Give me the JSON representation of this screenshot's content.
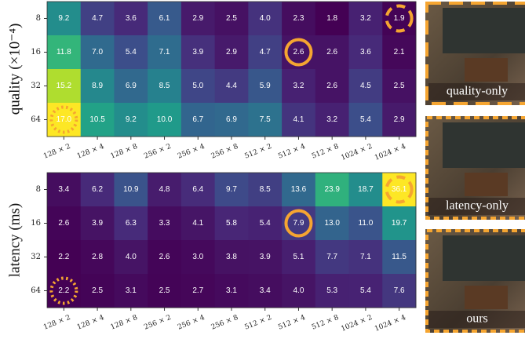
{
  "chart_data": [
    {
      "type": "heatmap",
      "ylabel": "quality (×10⁻⁴)",
      "colormap": "viridis",
      "categories": [
        "128 × 2",
        "128 × 4",
        "128 × 8",
        "256 × 2",
        "256 × 4",
        "256 × 8",
        "512 × 2",
        "512 × 4",
        "512 × 8",
        "1024 × 2",
        "1024 × 4"
      ],
      "rows": [
        8,
        16,
        32,
        64
      ],
      "values": [
        [
          9.2,
          4.7,
          3.6,
          6.1,
          2.9,
          2.5,
          4.0,
          2.3,
          1.8,
          3.2,
          1.9
        ],
        [
          11.8,
          7.0,
          5.4,
          7.1,
          3.9,
          2.9,
          4.7,
          2.6,
          2.6,
          3.6,
          2.1
        ],
        [
          15.2,
          8.9,
          6.9,
          8.5,
          5.0,
          4.4,
          5.9,
          3.2,
          2.6,
          4.5,
          2.5
        ],
        [
          17.0,
          10.5,
          9.2,
          10.0,
          6.7,
          6.9,
          7.5,
          4.1,
          3.2,
          5.4,
          2.9
        ]
      ],
      "value_labels": [
        [
          "9.2",
          "4.7",
          "3.6",
          "6.1",
          "2.9",
          "2.5",
          "4.0",
          "2.3",
          "1.8",
          "3.2",
          "1.9"
        ],
        [
          "11.8",
          "7.0",
          "5.4",
          "7.1",
          "3.9",
          "2.9",
          "4.7",
          "2.6",
          "2.6",
          "3.6",
          "2.1"
        ],
        [
          "15.2",
          "8.9",
          "6.9",
          "8.5",
          "5.0",
          "4.4",
          "5.9",
          "3.2",
          "2.6",
          "4.5",
          "2.5"
        ],
        [
          "17.0",
          "10.5",
          "9.2",
          "10.0",
          "6.7",
          "6.9",
          "7.5",
          "4.1",
          "3.2",
          "5.4",
          "2.9"
        ]
      ]
    },
    {
      "type": "heatmap",
      "ylabel": "latency (ms)",
      "colormap": "viridis",
      "categories": [
        "128 × 2",
        "128 × 4",
        "128 × 8",
        "256 × 2",
        "256 × 4",
        "256 × 8",
        "512 × 2",
        "512 × 4",
        "512 × 8",
        "1024 × 2",
        "1024 × 4"
      ],
      "rows": [
        8,
        16,
        32,
        64
      ],
      "values": [
        [
          3.4,
          6.2,
          10.9,
          4.8,
          6.4,
          9.7,
          8.5,
          13.6,
          23.9,
          18.7,
          36.1
        ],
        [
          2.6,
          3.9,
          6.3,
          3.3,
          4.1,
          5.8,
          5.4,
          7.9,
          13.0,
          11.0,
          19.7
        ],
        [
          2.2,
          2.8,
          4.0,
          2.6,
          3.0,
          3.8,
          3.9,
          5.1,
          7.7,
          7.1,
          11.5
        ],
        [
          2.2,
          2.5,
          3.1,
          2.5,
          2.7,
          3.1,
          3.4,
          4.0,
          5.3,
          5.4,
          7.6
        ]
      ],
      "value_labels": [
        [
          "3.4",
          "6.2",
          "10.9",
          "4.8",
          "6.4",
          "9.7",
          "8.5",
          "13.6",
          "23.9",
          "18.7",
          "36.1"
        ],
        [
          "2.6",
          "3.9",
          "6.3",
          "3.3",
          "4.1",
          "5.8",
          "5.4",
          "7.9",
          "13.0",
          "11.0",
          "19.7"
        ],
        [
          "2.2",
          "2.8",
          "4.0",
          "2.6",
          "3.0",
          "3.8",
          "3.9",
          "5.1",
          "7.7",
          "7.1",
          "11.5"
        ],
        [
          "2.2",
          "2.5",
          "3.1",
          "2.5",
          "2.7",
          "3.1",
          "3.4",
          "4.0",
          "5.3",
          "5.4",
          "7.6"
        ]
      ]
    }
  ],
  "panels": [
    {
      "label": "quality-only"
    },
    {
      "label": "latency-only"
    },
    {
      "label": "ours"
    }
  ]
}
